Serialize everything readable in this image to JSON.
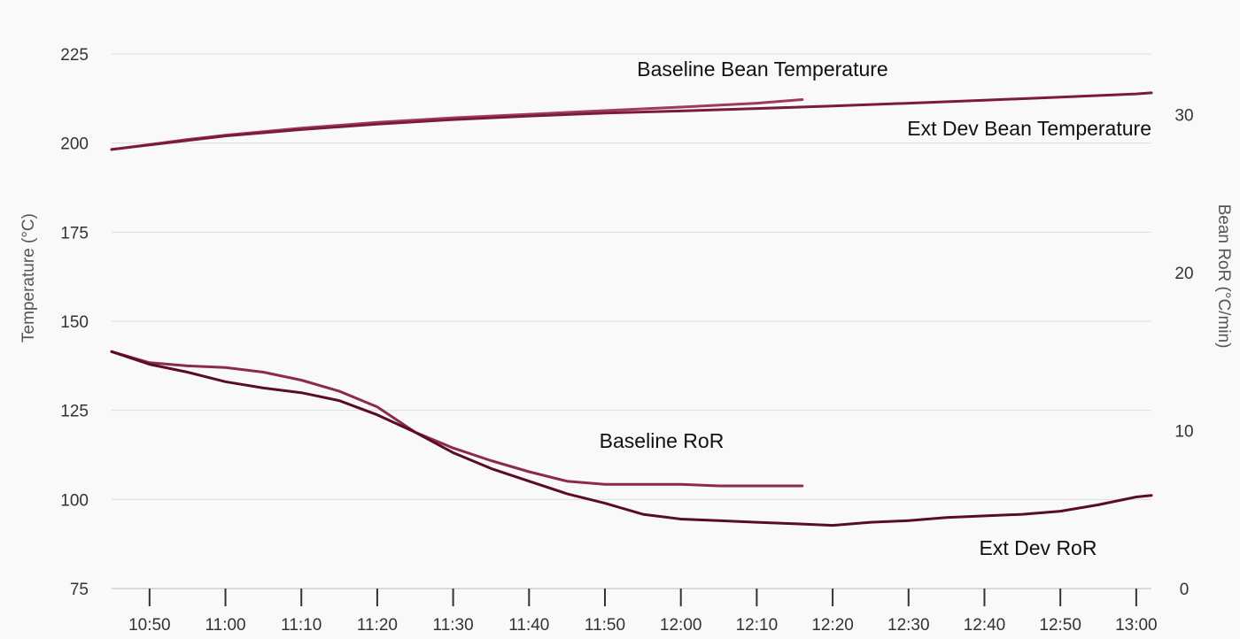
{
  "chart_data": {
    "type": "line",
    "x_axis": {
      "ticks": [
        "10:50",
        "11:00",
        "11:10",
        "11:20",
        "11:30",
        "11:40",
        "11:50",
        "12:00",
        "12:10",
        "12:20",
        "12:30",
        "12:40",
        "12:50",
        "13:00"
      ],
      "tick_seconds": [
        650,
        660,
        670,
        680,
        690,
        700,
        710,
        720,
        730,
        740,
        750,
        760,
        770,
        780
      ],
      "range_seconds": [
        645,
        782
      ]
    },
    "y_left": {
      "label": "Temperature (°C)",
      "ticks": [
        75,
        100,
        125,
        150,
        175,
        200,
        225
      ],
      "range": [
        75,
        225
      ]
    },
    "y_right": {
      "label": "Bean RoR (°C/min)",
      "ticks": [
        0,
        10,
        20,
        30
      ],
      "range": [
        0,
        33.85
      ]
    },
    "grid": true,
    "series": [
      {
        "name": "Baseline Bean Temperature",
        "axis": "left",
        "color": "#a03a57",
        "x": [
          645,
          650,
          655,
          660,
          670,
          680,
          690,
          700,
          710,
          720,
          730,
          736
        ],
        "y": [
          198.2,
          199.6,
          201.0,
          202.2,
          204.2,
          205.8,
          207.1,
          208.1,
          209.1,
          210.1,
          211.2,
          212.2
        ]
      },
      {
        "name": "Ext Dev Bean Temperature",
        "axis": "left",
        "color": "#7a1c38",
        "x": [
          645,
          650,
          660,
          670,
          680,
          690,
          700,
          710,
          720,
          730,
          740,
          750,
          760,
          770,
          780,
          782
        ],
        "y": [
          198.2,
          199.5,
          202.0,
          203.8,
          205.3,
          206.6,
          207.6,
          208.4,
          209.0,
          209.7,
          210.4,
          211.2,
          212.0,
          212.9,
          213.8,
          214.1
        ]
      },
      {
        "name": "Baseline RoR",
        "axis": "right",
        "color": "#8c2a48",
        "x": [
          645,
          650,
          655,
          660,
          665,
          670,
          675,
          680,
          685,
          690,
          695,
          700,
          705,
          710,
          715,
          720,
          725,
          730,
          736
        ],
        "y": [
          15.0,
          14.3,
          14.1,
          14.0,
          13.7,
          13.2,
          12.5,
          11.5,
          9.9,
          8.9,
          8.1,
          7.4,
          6.8,
          6.6,
          6.6,
          6.6,
          6.5,
          6.5,
          6.5
        ]
      },
      {
        "name": "Ext Dev RoR",
        "axis": "right",
        "color": "#5a0d22",
        "x": [
          645,
          650,
          655,
          660,
          665,
          670,
          675,
          680,
          685,
          690,
          695,
          700,
          705,
          710,
          715,
          720,
          725,
          730,
          735,
          740,
          745,
          750,
          755,
          760,
          765,
          770,
          775,
          780,
          782
        ],
        "y": [
          15.0,
          14.2,
          13.7,
          13.1,
          12.7,
          12.4,
          11.9,
          11.0,
          9.9,
          8.6,
          7.6,
          6.8,
          6.0,
          5.4,
          4.7,
          4.4,
          4.3,
          4.2,
          4.1,
          4.0,
          4.2,
          4.3,
          4.5,
          4.6,
          4.7,
          4.9,
          5.3,
          5.8,
          5.9
        ]
      }
    ]
  }
}
